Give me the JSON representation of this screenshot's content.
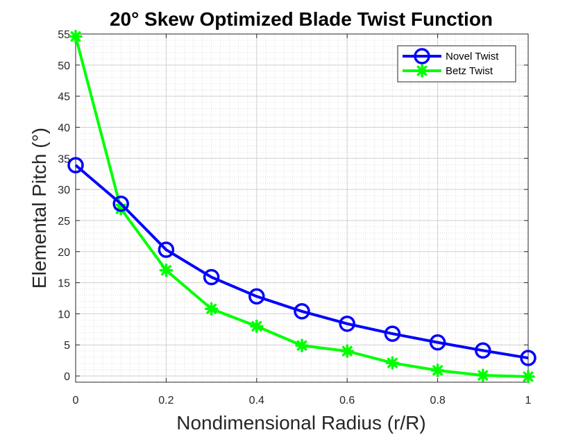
{
  "chart_data": {
    "type": "line",
    "title": "20° Skew Optimized Blade Twist Function",
    "xlabel": "Nondimensional Radius (r/R)",
    "ylabel": "Elemental Pitch (°)",
    "xlim": [
      0,
      1
    ],
    "ylim": [
      -1,
      55
    ],
    "xticks": [
      0,
      0.2,
      0.4,
      0.6,
      0.8,
      1
    ],
    "xtick_labels": [
      "0",
      "0.2",
      "0.4",
      "0.6",
      "0.8",
      "1"
    ],
    "yticks": [
      0,
      5,
      10,
      15,
      20,
      25,
      30,
      35,
      40,
      45,
      50,
      55
    ],
    "ytick_labels": [
      "0",
      "5",
      "10",
      "15",
      "20",
      "25",
      "30",
      "35",
      "40",
      "45",
      "50",
      "55"
    ],
    "grid": true,
    "minor_grid": true,
    "legend_position": "top-right",
    "x": [
      0,
      0.1,
      0.2,
      0.3,
      0.4,
      0.5,
      0.6,
      0.7,
      0.8,
      0.9,
      1.0
    ],
    "series": [
      {
        "name": "Novel Twist",
        "color": "#0000ff",
        "marker": "circle",
        "values": [
          33.9,
          27.7,
          20.3,
          15.9,
          12.8,
          10.4,
          8.4,
          6.8,
          5.4,
          4.1,
          2.9
        ]
      },
      {
        "name": "Betz Twist",
        "color": "#00ff00",
        "marker": "asterisk",
        "values": [
          54.6,
          26.9,
          17.0,
          10.8,
          8.0,
          4.9,
          4.0,
          2.1,
          0.9,
          0.1,
          -0.1
        ]
      }
    ]
  }
}
